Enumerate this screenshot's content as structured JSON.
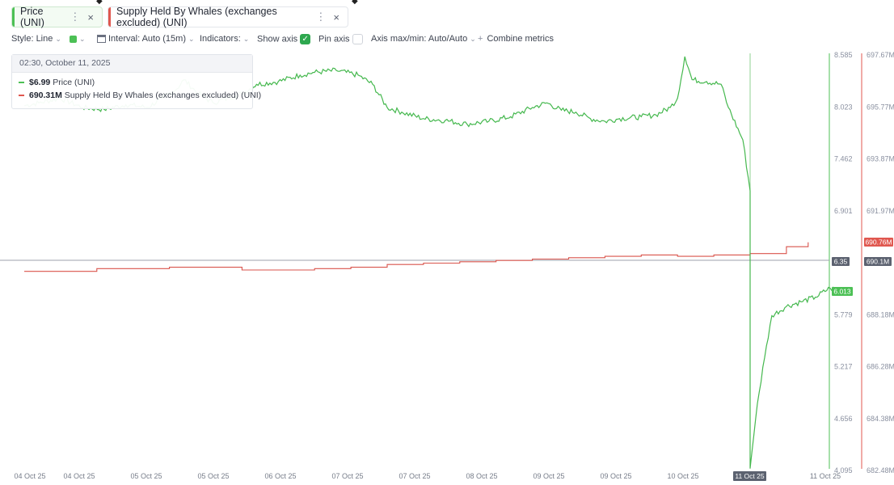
{
  "tabs": [
    {
      "label": "Price (UNI)",
      "color": "#4cc055"
    },
    {
      "label": "Supply Held By Whales (exchanges excluded) (UNI)",
      "color": "#e0574f"
    }
  ],
  "toolbar": {
    "style": "Style: Line",
    "interval": "Interval: Auto (15m)",
    "indicators": "Indicators:",
    "show_axis": "Show axis",
    "show_axis_checked": true,
    "pin_axis": "Pin axis",
    "pin_axis_checked": false,
    "axis_maxmin": "Axis max/min: Auto/Auto",
    "combine": "Combine metrics"
  },
  "tooltip": {
    "timestamp": "02:30, October 11, 2025",
    "price_value": "$6.99",
    "price_label": "Price (UNI)",
    "whales_value": "690.31M",
    "whales_label": "Supply Held By Whales (exchanges excluded) (UNI)"
  },
  "badges": {
    "whales_current": "690.76M",
    "crosshair_price": "6.35",
    "crosshair_whales": "690.1M",
    "price_current": "6.013",
    "crosshair_date": "11 Oct 25"
  },
  "chart_data": {
    "type": "line",
    "x_labels": [
      "04 Oct 25",
      "04 Oct 25",
      "05 Oct 25",
      "05 Oct 25",
      "06 Oct 25",
      "07 Oct 25",
      "07 Oct 25",
      "08 Oct 25",
      "09 Oct 25",
      "09 Oct 25",
      "10 Oct 25",
      "11 Oct 25",
      "11 Oct 25"
    ],
    "left_axis_ticks": [
      "8.585",
      "8.023",
      "7.462",
      "6.901",
      "6.35",
      "5.779",
      "5.217",
      "4.656",
      "4.095"
    ],
    "right_axis_ticks": [
      "697.67M",
      "695.77M",
      "693.87M",
      "691.97M",
      "690.1M",
      "688.18M",
      "686.28M",
      "684.38M",
      "682.48M"
    ],
    "price_axis": {
      "min": 4.095,
      "max": 8.585
    },
    "whales_axis": {
      "min": 682.48,
      "max": 697.67
    },
    "series": [
      {
        "name": "Price (UNI)",
        "color": "#4cc055",
        "points": [
          [
            0,
            8.02
          ],
          [
            0.02,
            8.05
          ],
          [
            0.05,
            8.1
          ],
          [
            0.08,
            8.0
          ],
          [
            0.11,
            7.98
          ],
          [
            0.14,
            8.03
          ],
          [
            0.17,
            8.0
          ],
          [
            0.19,
            8.1
          ],
          [
            0.21,
            8.2
          ],
          [
            0.22,
            8.3
          ],
          [
            0.24,
            8.15
          ],
          [
            0.26,
            8.05
          ],
          [
            0.28,
            8.1
          ],
          [
            0.3,
            8.15
          ],
          [
            0.32,
            8.25
          ],
          [
            0.35,
            8.28
          ],
          [
            0.38,
            8.35
          ],
          [
            0.4,
            8.38
          ],
          [
            0.43,
            8.4
          ],
          [
            0.46,
            8.35
          ],
          [
            0.48,
            8.25
          ],
          [
            0.5,
            8.0
          ],
          [
            0.52,
            7.95
          ],
          [
            0.55,
            7.88
          ],
          [
            0.58,
            7.86
          ],
          [
            0.61,
            7.82
          ],
          [
            0.64,
            7.85
          ],
          [
            0.67,
            7.9
          ],
          [
            0.7,
            8.0
          ],
          [
            0.72,
            8.05
          ],
          [
            0.74,
            7.97
          ],
          [
            0.76,
            7.95
          ],
          [
            0.78,
            7.88
          ],
          [
            0.8,
            7.85
          ],
          [
            0.82,
            7.88
          ],
          [
            0.85,
            7.9
          ],
          [
            0.87,
            7.92
          ],
          [
            0.89,
            8.0
          ],
          [
            0.9,
            8.1
          ],
          [
            0.91,
            8.55
          ],
          [
            0.92,
            8.3
          ],
          [
            0.94,
            8.28
          ],
          [
            0.96,
            8.25
          ],
          [
            0.97,
            8.0
          ],
          [
            0.99,
            7.65
          ],
          [
            1.0,
            7.1
          ],
          [
            1.0,
            4.1
          ],
          [
            1.01,
            4.8
          ],
          [
            1.02,
            5.3
          ],
          [
            1.03,
            5.75
          ],
          [
            1.05,
            5.85
          ],
          [
            1.07,
            5.9
          ],
          [
            1.09,
            5.95
          ],
          [
            1.11,
            6.05
          ],
          [
            1.13,
            6.0
          ]
        ]
      },
      {
        "name": "Supply Held By Whales (exchanges excluded) (UNI)",
        "color": "#e0574f",
        "points": [
          [
            0,
            689.7
          ],
          [
            0.1,
            689.8
          ],
          [
            0.2,
            689.85
          ],
          [
            0.3,
            689.75
          ],
          [
            0.4,
            689.8
          ],
          [
            0.45,
            689.85
          ],
          [
            0.5,
            689.95
          ],
          [
            0.55,
            690.0
          ],
          [
            0.6,
            690.05
          ],
          [
            0.65,
            690.1
          ],
          [
            0.7,
            690.15
          ],
          [
            0.75,
            690.2
          ],
          [
            0.8,
            690.25
          ],
          [
            0.85,
            690.3
          ],
          [
            0.9,
            690.25
          ],
          [
            0.95,
            690.3
          ],
          [
            1.0,
            690.35
          ],
          [
            1.05,
            690.6
          ],
          [
            1.08,
            690.76
          ]
        ]
      }
    ],
    "grid": false,
    "legend": "top-left tooltip"
  }
}
